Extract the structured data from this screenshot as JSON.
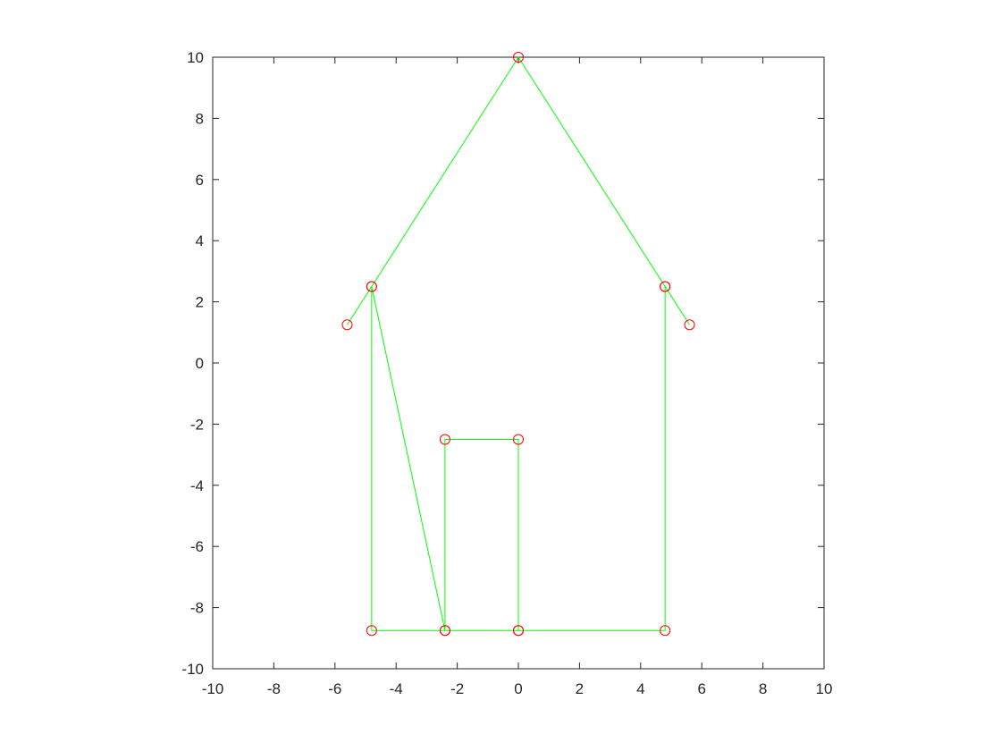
{
  "chart_data": {
    "type": "line",
    "title": "",
    "xlabel": "",
    "ylabel": "",
    "xlim": [
      -10,
      10
    ],
    "ylim": [
      -10,
      10
    ],
    "xticks": [
      -10,
      -8,
      -6,
      -4,
      -2,
      0,
      2,
      4,
      6,
      8,
      10
    ],
    "yticks": [
      -10,
      -8,
      -6,
      -4,
      -2,
      0,
      2,
      4,
      6,
      8,
      10
    ],
    "xtick_labels": [
      "-10",
      "-8",
      "-6",
      "-4",
      "-2",
      "0",
      "2",
      "4",
      "6",
      "8",
      "10"
    ],
    "ytick_labels": [
      "-10",
      "-8",
      "-6",
      "-4",
      "-2",
      "0",
      "2",
      "4",
      "6",
      "8",
      "10"
    ],
    "grid": false,
    "box": true,
    "series": [
      {
        "line_color": "#00ff00",
        "marker": "circle",
        "marker_color": "#ff0000",
        "x": [
          -5.6,
          -4.8,
          0,
          4.8,
          5.6,
          4.8,
          4.8,
          0,
          -2.4,
          -4.8,
          -4.8,
          -2.4,
          -2.4,
          0,
          0
        ],
        "y": [
          1.25,
          2.5,
          10,
          2.5,
          1.25,
          2.5,
          -8.75,
          -8.75,
          -8.75,
          -8.75,
          2.5,
          -8.75,
          -2.5,
          -2.5,
          -8.75
        ]
      }
    ]
  }
}
